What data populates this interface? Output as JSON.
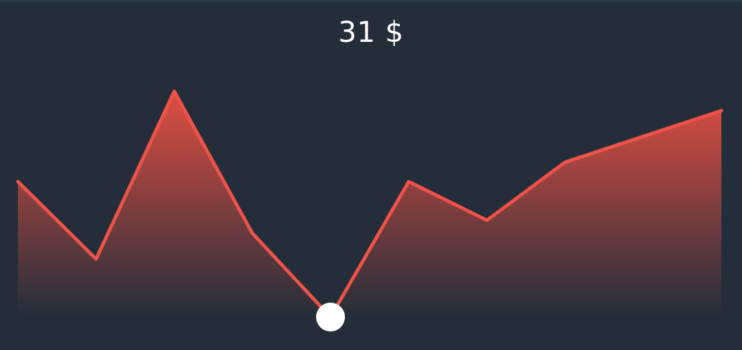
{
  "header": {
    "value_text": "31 $"
  },
  "colors": {
    "background": "#232e3a",
    "line": "#ef5248",
    "area_top": "#ea5043",
    "marker": "#ffffff"
  },
  "chart_data": {
    "type": "area",
    "title": "",
    "xlabel": "",
    "ylabel": "",
    "x": [
      0,
      1,
      2,
      3,
      4,
      5,
      6,
      7,
      8,
      9
    ],
    "values": [
      52,
      40,
      66,
      44,
      31,
      52,
      46,
      55,
      59,
      63
    ],
    "ylim": [
      31,
      66
    ],
    "grid": false,
    "selected_index": 4,
    "selected_value": 31
  }
}
